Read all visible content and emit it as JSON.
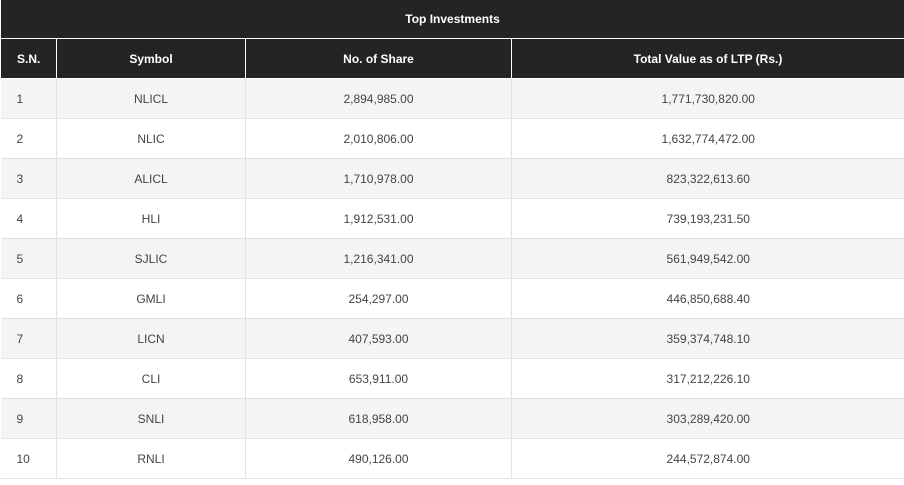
{
  "table": {
    "title": "Top Investments",
    "columns": {
      "sn": "S.N.",
      "symbol": "Symbol",
      "shares": "No. of Share",
      "value": "Total Value as of LTP (Rs.)"
    },
    "rows": [
      {
        "sn": "1",
        "symbol": "NLICL",
        "shares": "2,894,985.00",
        "value": "1,771,730,820.00"
      },
      {
        "sn": "2",
        "symbol": "NLIC",
        "shares": "2,010,806.00",
        "value": "1,632,774,472.00"
      },
      {
        "sn": "3",
        "symbol": "ALICL",
        "shares": "1,710,978.00",
        "value": "823,322,613.60"
      },
      {
        "sn": "4",
        "symbol": "HLI",
        "shares": "1,912,531.00",
        "value": "739,193,231.50"
      },
      {
        "sn": "5",
        "symbol": "SJLIC",
        "shares": "1,216,341.00",
        "value": "561,949,542.00"
      },
      {
        "sn": "6",
        "symbol": "GMLI",
        "shares": "254,297.00",
        "value": "446,850,688.40"
      },
      {
        "sn": "7",
        "symbol": "LICN",
        "shares": "407,593.00",
        "value": "359,374,748.10"
      },
      {
        "sn": "8",
        "symbol": "CLI",
        "shares": "653,911.00",
        "value": "317,212,226.10"
      },
      {
        "sn": "9",
        "symbol": "SNLI",
        "shares": "618,958.00",
        "value": "303,289,420.00"
      },
      {
        "sn": "10",
        "symbol": "RNLI",
        "shares": "490,126.00",
        "value": "244,572,874.00"
      }
    ]
  },
  "colors": {
    "header_bg": "#242424",
    "header_text": "#ffffff",
    "row_alt_bg": "#f4f4f4",
    "row_bg": "#ffffff",
    "cell_text": "#444444",
    "border": "#e2e2e2"
  }
}
